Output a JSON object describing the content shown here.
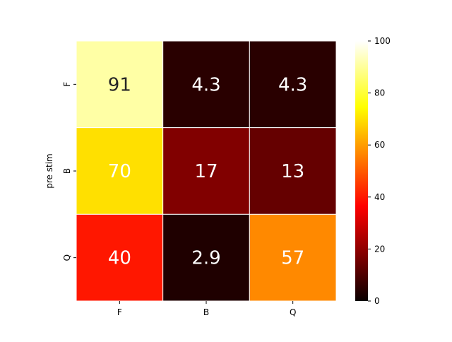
{
  "chart_data": {
    "type": "heatmap",
    "title": "",
    "xlabel": "",
    "ylabel": "pre stim",
    "x_categories": [
      "F",
      "B",
      "Q"
    ],
    "y_categories": [
      "F",
      "B",
      "Q"
    ],
    "values": [
      [
        91,
        4.3,
        4.3
      ],
      [
        70,
        17,
        13
      ],
      [
        40,
        2.9,
        57
      ]
    ],
    "value_labels": [
      [
        "91",
        "4.3",
        "4.3"
      ],
      [
        "70",
        "17",
        "13"
      ],
      [
        "40",
        "2.9",
        "57"
      ]
    ],
    "colormap": "hot",
    "colorbar": {
      "range": [
        0,
        100
      ],
      "ticks": [
        0,
        20,
        40,
        60,
        80,
        100
      ],
      "tick_labels": [
        "0",
        "20",
        "40",
        "60",
        "80",
        "100"
      ]
    },
    "grid": false,
    "legend": "colorbar-right"
  }
}
